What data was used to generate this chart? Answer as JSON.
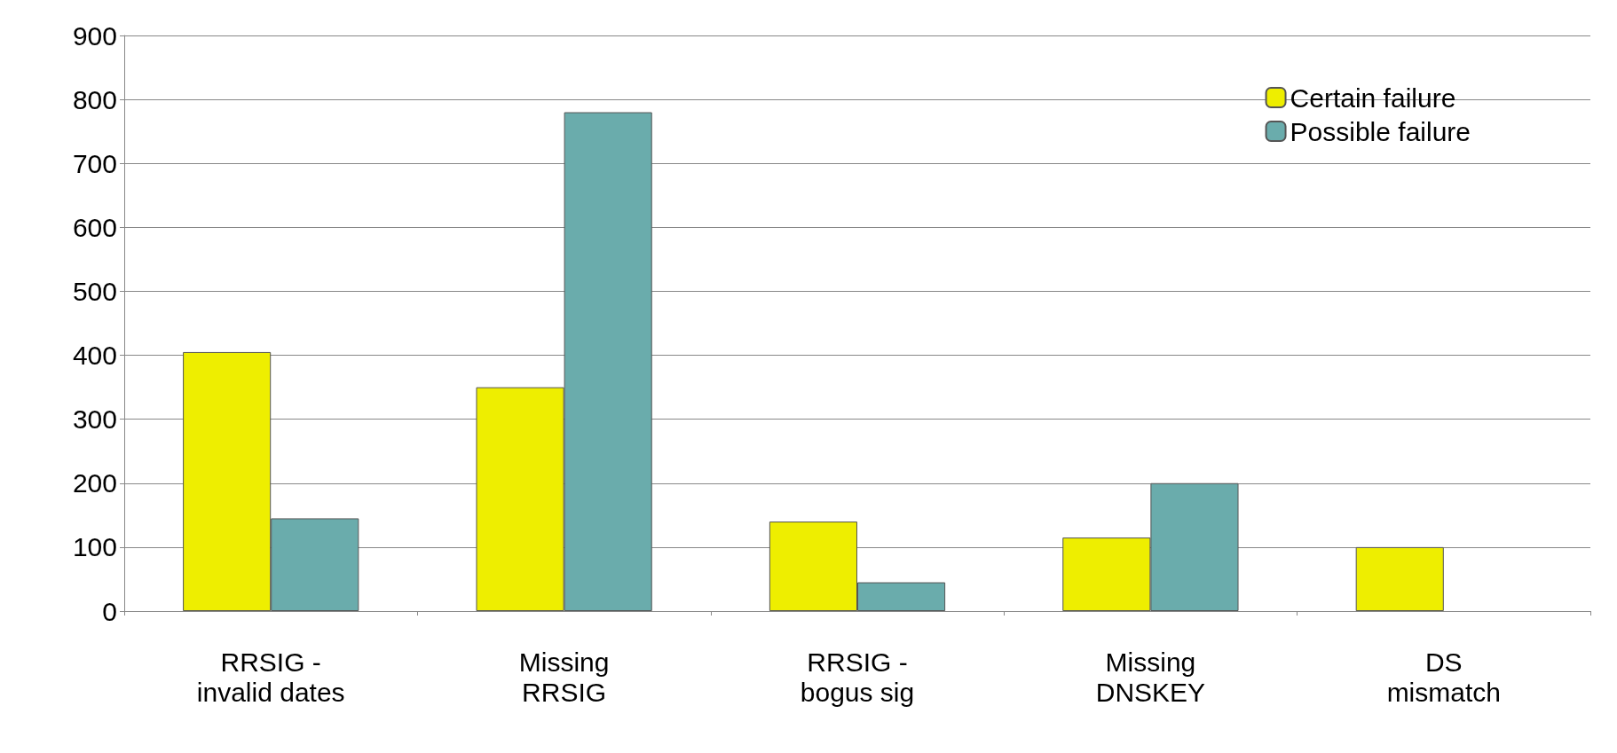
{
  "chart_data": {
    "type": "bar",
    "categories": [
      "RRSIG -\ninvalid dates",
      "Missing\nRRSIG",
      "RRSIG -\nbogus sig",
      "Missing\nDNSKEY",
      "DS\nmismatch"
    ],
    "series": [
      {
        "name": "Certain failure",
        "color": "#eeee00",
        "values": [
          405,
          350,
          140,
          115,
          100
        ]
      },
      {
        "name": "Possible failure",
        "color": "#6aacac",
        "values": [
          145,
          780,
          45,
          200,
          null
        ]
      }
    ],
    "ylim": [
      0,
      900
    ],
    "yticks": [
      0,
      100,
      200,
      300,
      400,
      500,
      600,
      700,
      800,
      900
    ],
    "grid": "y",
    "legend": "top right"
  }
}
